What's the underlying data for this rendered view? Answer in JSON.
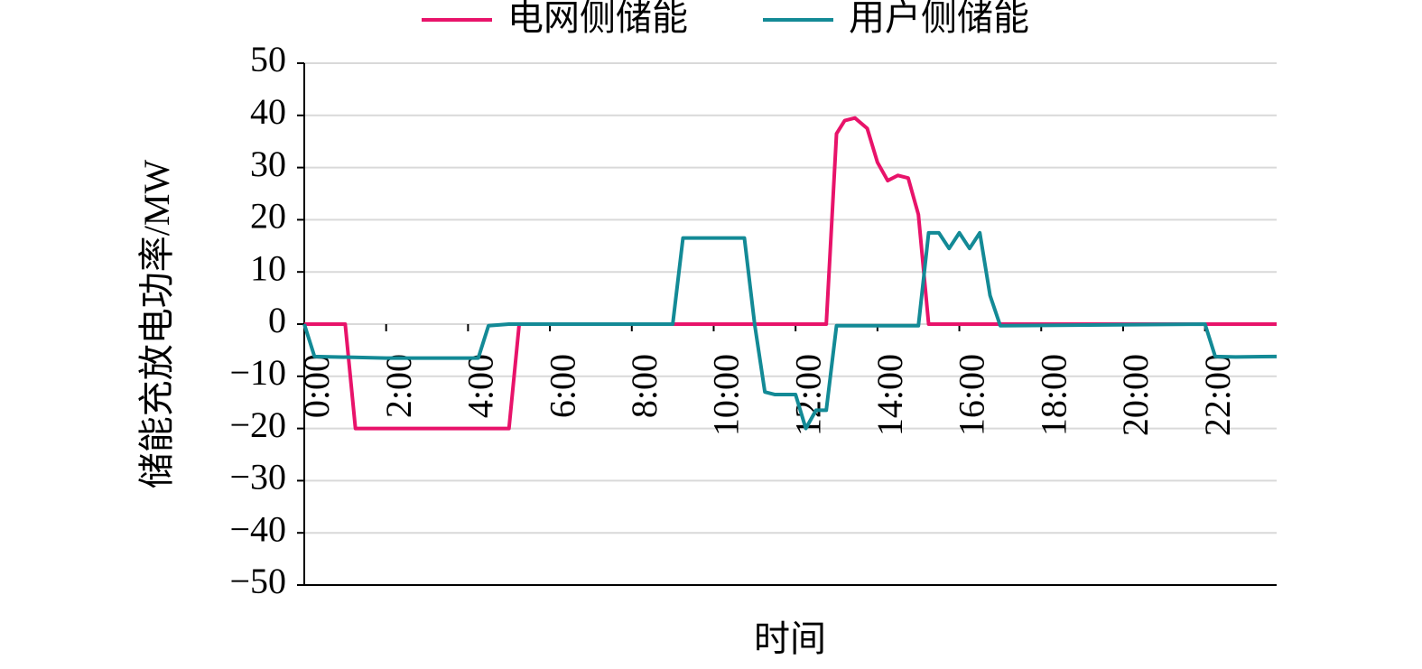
{
  "chart_data": {
    "type": "line",
    "xlabel": "时间",
    "ylabel": "储能充放电功率/MW",
    "xlim": [
      0,
      23.75
    ],
    "xticks": [
      {
        "value": 0,
        "label": "0:00"
      },
      {
        "value": 2,
        "label": "2:00"
      },
      {
        "value": 4,
        "label": "4:00"
      },
      {
        "value": 6,
        "label": "6:00"
      },
      {
        "value": 8,
        "label": "8:00"
      },
      {
        "value": 10,
        "label": "10:00"
      },
      {
        "value": 12,
        "label": "12:00"
      },
      {
        "value": 14,
        "label": "14:00"
      },
      {
        "value": 16,
        "label": "16:00"
      },
      {
        "value": 18,
        "label": "18:00"
      },
      {
        "value": 20,
        "label": "20:00"
      },
      {
        "value": 22,
        "label": "22:00"
      }
    ],
    "ylim": [
      -50,
      50
    ],
    "yticks": [
      50,
      40,
      30,
      20,
      10,
      0,
      {
        "value": -10,
        "label": "−10"
      },
      {
        "value": -20,
        "label": "−20"
      },
      {
        "value": -30,
        "label": "−30"
      },
      {
        "value": -40,
        "label": "−40"
      },
      {
        "value": -50,
        "label": "−50"
      }
    ],
    "grid": true,
    "legend": "top",
    "series": [
      {
        "name": "电网侧储能",
        "color": "#e8136a",
        "x": [
          0,
          1.0,
          1.25,
          5.0,
          5.25,
          12.75,
          13.0,
          13.2,
          13.45,
          13.75,
          14.0,
          14.25,
          14.5,
          14.75,
          15.0,
          15.25,
          23.75
        ],
        "values": [
          0,
          0,
          -20,
          -20,
          0,
          0,
          36.5,
          39,
          39.5,
          37.5,
          31,
          27.5,
          28.5,
          28,
          21,
          0,
          0
        ]
      },
      {
        "name": "用户侧储能",
        "color": "#138a96",
        "x": [
          0,
          0.25,
          2.0,
          4.25,
          4.5,
          5.0,
          9.0,
          9.25,
          10.75,
          11.0,
          11.25,
          11.5,
          12.0,
          12.25,
          12.5,
          12.75,
          13.0,
          15.0,
          15.25,
          15.5,
          15.75,
          16.0,
          16.25,
          16.5,
          16.75,
          17.0,
          22.0,
          22.25,
          22.75,
          23.75
        ],
        "values": [
          0,
          -6.2,
          -6.5,
          -6.5,
          -0.3,
          0,
          0,
          16.5,
          16.5,
          0,
          -13,
          -13.5,
          -13.5,
          -20,
          -16.5,
          -16.5,
          -0.3,
          -0.3,
          17.5,
          17.5,
          14.5,
          17.5,
          14.5,
          17.5,
          5.5,
          -0.3,
          0,
          -6.2,
          -6.3,
          -6.2
        ]
      }
    ]
  }
}
